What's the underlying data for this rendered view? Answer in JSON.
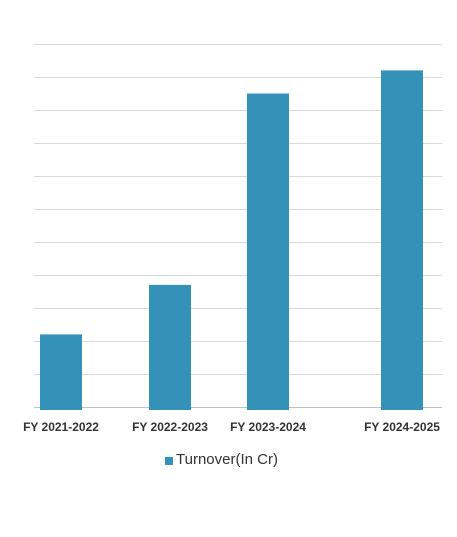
{
  "chart_data": {
    "type": "bar",
    "categories": [
      "FY 2021-2022",
      "FY 2022-2023",
      "FY 2023-2024",
      "FY 2024-2025"
    ],
    "series": [
      {
        "name": "Turnover(In Cr)",
        "values": [
          22,
          37,
          95,
          102
        ]
      }
    ],
    "ylim": [
      0,
      110
    ],
    "grid": true,
    "legend": "bottom",
    "colors": {
      "bar": "#3492b9",
      "grid": "#d9d9d9",
      "axis": "#bfbfbf",
      "text": "#333333"
    }
  }
}
